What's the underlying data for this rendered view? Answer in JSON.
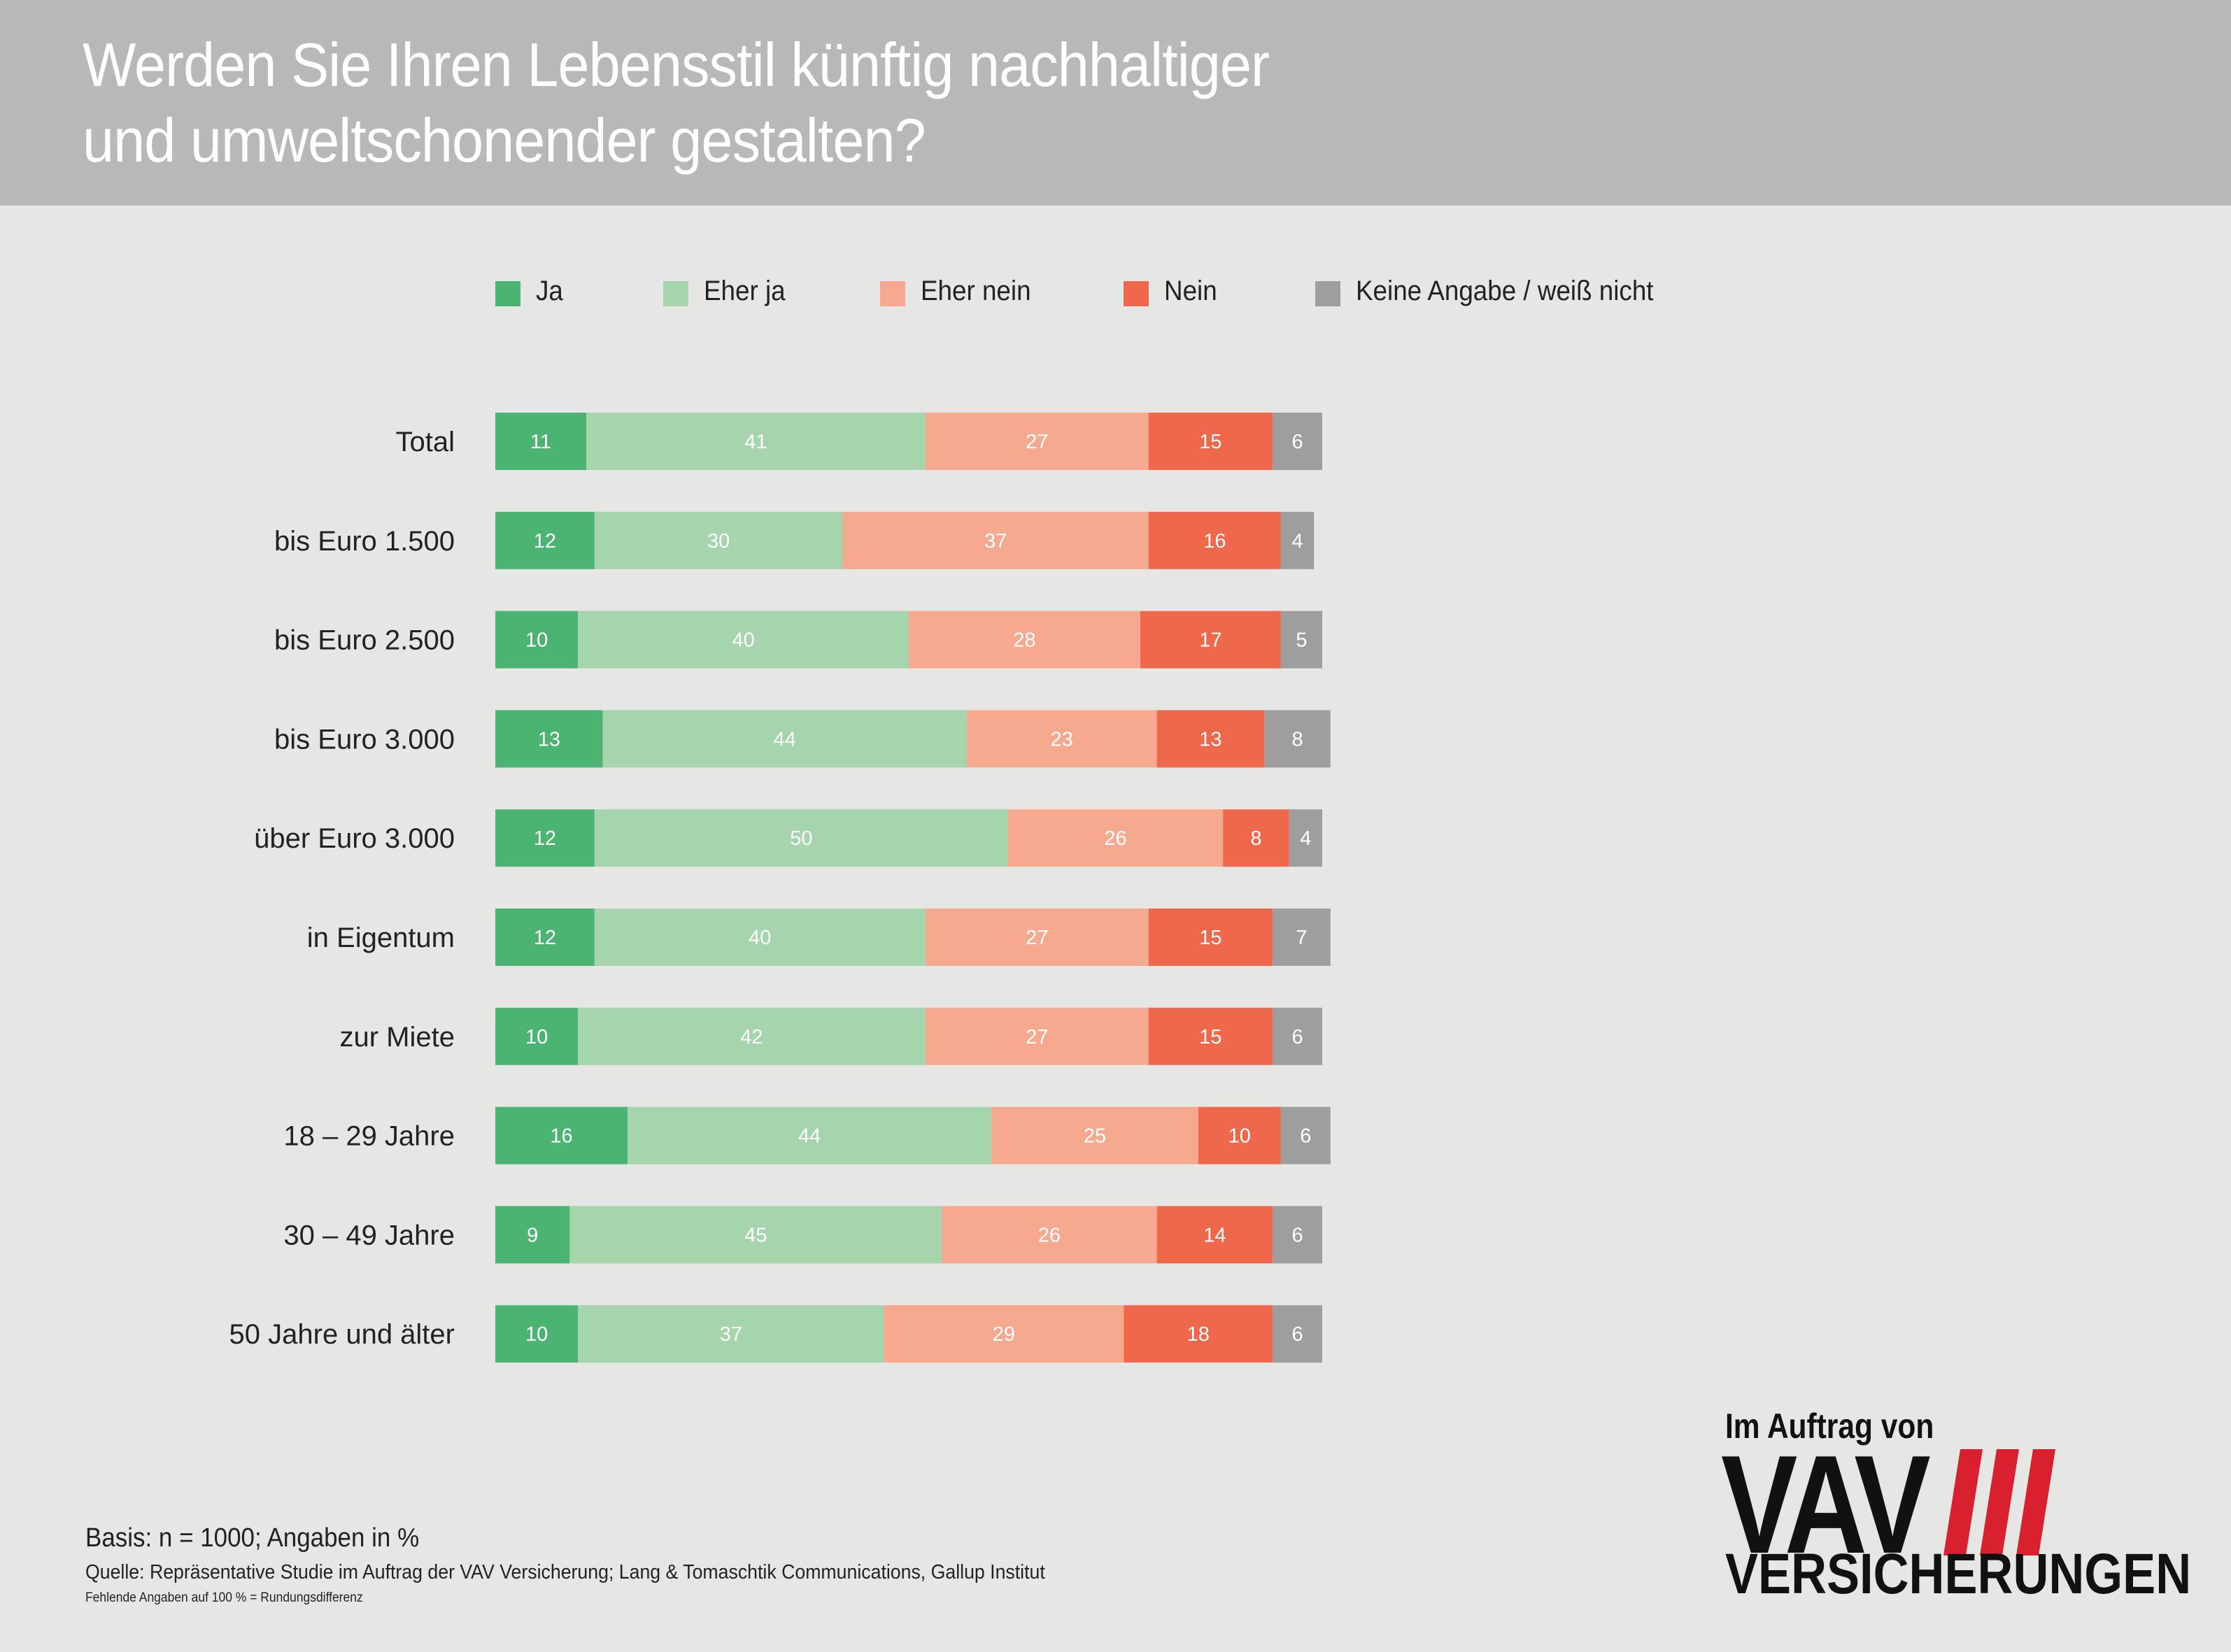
{
  "title": {
    "line1": "Werden Sie Ihren Lebensstil künftig nachhaltiger",
    "line2": "und umweltschonender gestalten?"
  },
  "legend": [
    {
      "label": "Ja",
      "color": "#4cb472"
    },
    {
      "label": "Eher ja",
      "color": "#a6d4ad"
    },
    {
      "label": "Eher nein",
      "color": "#f7a98f"
    },
    {
      "label": "Nein",
      "color": "#ef684c"
    },
    {
      "label": "Keine Angabe / weiß nicht",
      "color": "#9e9e9e"
    }
  ],
  "chart_data": {
    "type": "bar",
    "orientation": "horizontal",
    "stacked": true,
    "unit": "%",
    "categories": [
      "Total",
      "bis Euro 1.500",
      "bis Euro 2.500",
      "bis Euro 3.000",
      "über Euro 3.000",
      "in Eigentum",
      "zur Miete",
      "18 – 29 Jahre",
      "30 – 49 Jahre",
      "50 Jahre und älter"
    ],
    "series": [
      {
        "name": "Ja",
        "color": "#4cb472",
        "values": [
          11,
          12,
          10,
          13,
          12,
          12,
          10,
          16,
          9,
          10
        ]
      },
      {
        "name": "Eher ja",
        "color": "#a6d4ad",
        "values": [
          41,
          30,
          40,
          44,
          50,
          40,
          42,
          44,
          45,
          37
        ]
      },
      {
        "name": "Eher nein",
        "color": "#f7a98f",
        "values": [
          27,
          37,
          28,
          23,
          26,
          27,
          27,
          25,
          26,
          29
        ]
      },
      {
        "name": "Nein",
        "color": "#ef684c",
        "values": [
          15,
          16,
          17,
          13,
          8,
          15,
          15,
          10,
          14,
          18
        ]
      },
      {
        "name": "Keine Angabe / weiß nicht",
        "color": "#9e9e9e",
        "values": [
          6,
          4,
          5,
          8,
          4,
          7,
          6,
          6,
          6,
          6
        ]
      }
    ],
    "legend_position": "top",
    "grid": false
  },
  "notes": {
    "basis": "Basis: n = 1000; Angaben in %",
    "source": "Quelle: Repräsentative Studie im Auftrag der VAV Versicherung; Lang & Tomaschtik Communications, Gallup Institut",
    "footnote": "Fehlende Angaben auf 100 % = Rundungsdifferenz"
  },
  "logo": {
    "tagline": "Im Auftrag von",
    "brand": "VAV",
    "sub": "VERSICHERUNGEN",
    "accent_color": "#d8202f"
  }
}
